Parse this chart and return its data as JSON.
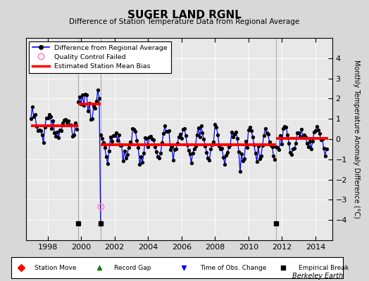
{
  "title": "SUGER LAND RGNL",
  "subtitle": "Difference of Station Temperature Data from Regional Average",
  "ylabel": "Monthly Temperature Anomaly Difference (°C)",
  "background_color": "#d8d8d8",
  "plot_bg_color": "#e8e8e8",
  "xlim": [
    1996.7,
    2015.0
  ],
  "ylim": [
    -5,
    5
  ],
  "yticks": [
    -4,
    -3,
    -2,
    -1,
    0,
    1,
    2,
    3,
    4
  ],
  "xticks": [
    1998,
    2000,
    2002,
    2004,
    2006,
    2008,
    2010,
    2012,
    2014
  ],
  "segment1_bias": 0.65,
  "segment2_bias": 1.75,
  "segment3_bias": -0.28,
  "segment4_bias": 0.05,
  "segment1_start": 1997.0,
  "segment1_end": 1999.83,
  "segment2_start": 1999.83,
  "segment2_end": 2001.17,
  "segment3_start": 2001.17,
  "segment3_end": 2011.67,
  "segment4_start": 2011.67,
  "segment4_end": 2014.75,
  "vline1_x": 1999.83,
  "vline2_x": 2001.17,
  "vline3_x": 2011.67,
  "break1_x": 1999.83,
  "break2_x": 2001.17,
  "break3_x": 2011.67,
  "qc_x": 2001.17,
  "qc_y": -3.35,
  "spike_x": 2001.17,
  "spike_y": -4.3,
  "berkeley_earth_text": "Berkeley Earth"
}
